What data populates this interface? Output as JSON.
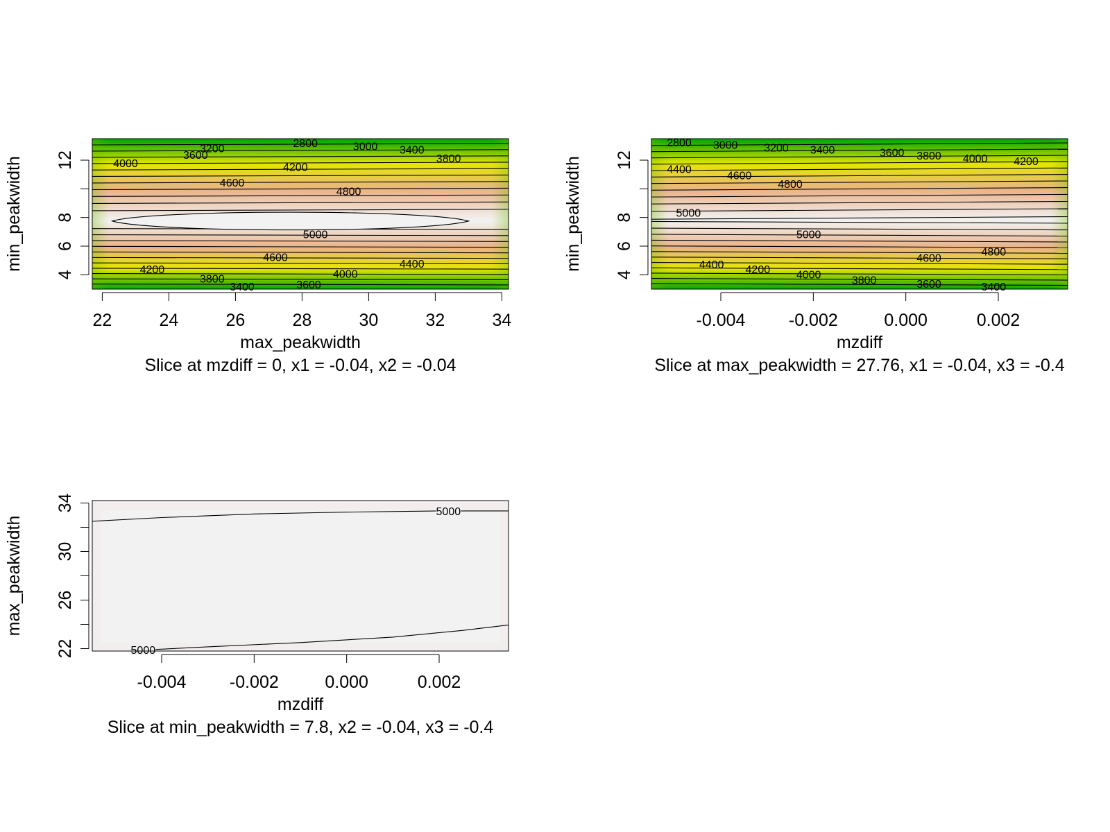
{
  "colors": {
    "low": "#00a600",
    "mid_low": "#e6e600",
    "mid_high": "#eab38a",
    "high": "#f2f2f2",
    "contour": "#000000",
    "axis": "#000000"
  },
  "chart_data": [
    {
      "type": "heatmap",
      "subtype": "contour",
      "xlabel": "max_peakwidth",
      "ylabel": "min_peakwidth",
      "caption": "Slice at mzdiff = 0, x1 = -0.04, x2 = -0.04",
      "xlim": [
        21.7,
        34.2
      ],
      "ylim": [
        3.0,
        13.5
      ],
      "x_ticks": [
        22,
        24,
        26,
        28,
        30,
        32,
        34
      ],
      "x_tick_labels": [
        "22",
        "24",
        "26",
        "28",
        "30",
        "32",
        "34"
      ],
      "y_ticks": [
        4,
        6,
        8,
        12
      ],
      "y_tick_labels": [
        "4",
        "6",
        "8",
        "12"
      ],
      "y_minor_ticks": [
        4,
        6,
        8,
        10,
        12
      ],
      "z_range": [
        2700,
        5050
      ],
      "response_peak": 7.8,
      "contour_levels": [
        2800,
        3000,
        3200,
        3400,
        3600,
        3800,
        4000,
        4200,
        4400,
        4600,
        4800,
        5000
      ],
      "contour_labels": [
        {
          "text": "2800",
          "x": 28.1,
          "y": 13.15
        },
        {
          "text": "3000",
          "x": 29.9,
          "y": 12.95
        },
        {
          "text": "3200",
          "x": 25.3,
          "y": 12.8
        },
        {
          "text": "3400",
          "x": 31.3,
          "y": 12.7
        },
        {
          "text": "3600",
          "x": 24.8,
          "y": 12.35
        },
        {
          "text": "3800",
          "x": 32.4,
          "y": 12.1
        },
        {
          "text": "4000",
          "x": 22.7,
          "y": 11.75
        },
        {
          "text": "4200",
          "x": 27.8,
          "y": 11.5
        },
        {
          "text": "4600",
          "x": 25.9,
          "y": 10.4
        },
        {
          "text": "4800",
          "x": 29.4,
          "y": 9.8
        },
        {
          "text": "5000",
          "x": 28.4,
          "y": 6.8
        },
        {
          "text": "4600",
          "x": 27.2,
          "y": 5.2
        },
        {
          "text": "4400",
          "x": 31.3,
          "y": 4.75
        },
        {
          "text": "4200",
          "x": 23.5,
          "y": 4.35
        },
        {
          "text": "4000",
          "x": 29.3,
          "y": 4.05
        },
        {
          "text": "3800",
          "x": 25.3,
          "y": 3.7
        },
        {
          "text": "3600",
          "x": 28.2,
          "y": 3.3
        },
        {
          "text": "3400",
          "x": 26.2,
          "y": 3.15
        }
      ],
      "closed_contour": {
        "level": 5000,
        "x_range": [
          22.3,
          33.0
        ],
        "y_center": 7.75
      }
    },
    {
      "type": "heatmap",
      "subtype": "contour",
      "xlabel": "mzdiff",
      "ylabel": "min_peakwidth",
      "caption": "Slice at max_peakwidth = 27.76, x1 = -0.04, x3 = -0.4",
      "xlim": [
        -0.0055,
        0.0035
      ],
      "ylim": [
        3.0,
        13.5
      ],
      "x_ticks": [
        -0.004,
        -0.002,
        0.0,
        0.002
      ],
      "x_tick_labels": [
        "-0.004",
        "-0.002",
        "0.000",
        "0.002"
      ],
      "y_ticks": [
        4,
        6,
        8,
        12
      ],
      "y_tick_labels": [
        "4",
        "6",
        "8",
        "12"
      ],
      "y_minor_ticks": [
        4,
        6,
        8,
        10,
        12
      ],
      "z_range": [
        2700,
        5050
      ],
      "response_peak": 7.8,
      "contour_levels": [
        2800,
        3000,
        3200,
        3400,
        3600,
        3800,
        4000,
        4200,
        4400,
        4600,
        4800,
        5000
      ],
      "contour_labels": [
        {
          "text": "2800",
          "x": -0.0049,
          "y": 13.2
        },
        {
          "text": "3000",
          "x": -0.0039,
          "y": 13.05
        },
        {
          "text": "3200",
          "x": -0.0028,
          "y": 12.85
        },
        {
          "text": "3400",
          "x": -0.0018,
          "y": 12.7
        },
        {
          "text": "3600",
          "x": -0.0003,
          "y": 12.5
        },
        {
          "text": "3800",
          "x": 0.0005,
          "y": 12.3
        },
        {
          "text": "4000",
          "x": 0.0015,
          "y": 12.1
        },
        {
          "text": "4200",
          "x": 0.0026,
          "y": 11.9
        },
        {
          "text": "4400",
          "x": -0.0049,
          "y": 11.35
        },
        {
          "text": "4600",
          "x": -0.0036,
          "y": 10.9
        },
        {
          "text": "4800",
          "x": -0.0025,
          "y": 10.3
        },
        {
          "text": "5000",
          "x": -0.0047,
          "y": 8.3
        },
        {
          "text": "5000",
          "x": -0.0021,
          "y": 6.8
        },
        {
          "text": "4800",
          "x": 0.0019,
          "y": 5.6
        },
        {
          "text": "4600",
          "x": 0.0005,
          "y": 5.15
        },
        {
          "text": "4400",
          "x": -0.0042,
          "y": 4.7
        },
        {
          "text": "4200",
          "x": -0.0032,
          "y": 4.35
        },
        {
          "text": "4000",
          "x": -0.0021,
          "y": 4.0
        },
        {
          "text": "3800",
          "x": -0.0009,
          "y": 3.6
        },
        {
          "text": "3600",
          "x": 0.0005,
          "y": 3.35
        },
        {
          "text": "3400",
          "x": 0.0019,
          "y": 3.15
        }
      ]
    },
    {
      "type": "heatmap",
      "subtype": "contour",
      "xlabel": "mzdiff",
      "ylabel": "max_peakwidth",
      "caption": "Slice at min_peakwidth = 7.8, x2 = -0.04, x3 = -0.4",
      "xlim": [
        -0.0055,
        0.0035
      ],
      "ylim": [
        21.8,
        34.2
      ],
      "x_ticks": [
        -0.004,
        -0.002,
        0.0,
        0.002
      ],
      "x_tick_labels": [
        "-0.004",
        "-0.002",
        "0.000",
        "0.002"
      ],
      "y_ticks": [
        22,
        26,
        30,
        34
      ],
      "y_tick_labels": [
        "22",
        "26",
        "30",
        "34"
      ],
      "y_minor_ticks": [
        22,
        24,
        26,
        28,
        30,
        32,
        34
      ],
      "contour_lines": [
        {
          "level": 5000,
          "points": [
            [
              -0.0055,
              32.5
            ],
            [
              -0.004,
              32.8
            ],
            [
              -0.002,
              33.1
            ],
            [
              0.0,
              33.25
            ],
            [
              0.002,
              33.35
            ],
            [
              0.0035,
              33.35
            ]
          ],
          "label": {
            "text": "5000",
            "x": 0.0022,
            "y": 33.3
          }
        },
        {
          "level": 5000,
          "points": [
            [
              -0.0043,
              21.9
            ],
            [
              -0.003,
              22.15
            ],
            [
              -0.001,
              22.5
            ],
            [
              0.001,
              22.95
            ],
            [
              0.0025,
              23.5
            ],
            [
              0.0035,
              23.95
            ]
          ],
          "label": {
            "text": "5000",
            "x": -0.0044,
            "y": 21.85
          }
        }
      ]
    }
  ]
}
